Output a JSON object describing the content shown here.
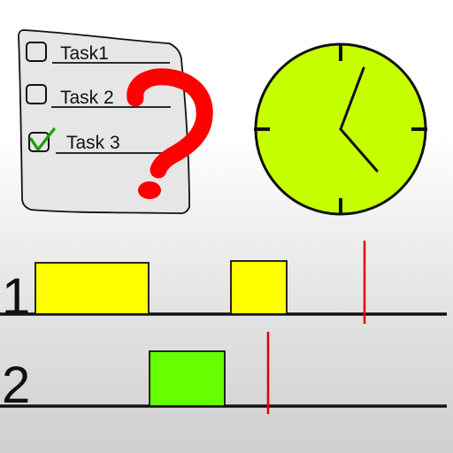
{
  "checklist": {
    "items": [
      {
        "label": "Task1",
        "checked": false
      },
      {
        "label": "Task 2",
        "checked": false
      },
      {
        "label": "Task 3",
        "checked": true
      }
    ]
  },
  "question_mark": {
    "glyph": "?",
    "color": "#ff0000"
  },
  "clock": {
    "face_color": "#c6ff00",
    "icon": "clock-icon"
  },
  "timeline": {
    "lanes": [
      {
        "label": "1",
        "block_color": "#ffff00"
      },
      {
        "label": "2",
        "block_color": "#66ff00"
      }
    ],
    "marker_color": "#e00000"
  }
}
